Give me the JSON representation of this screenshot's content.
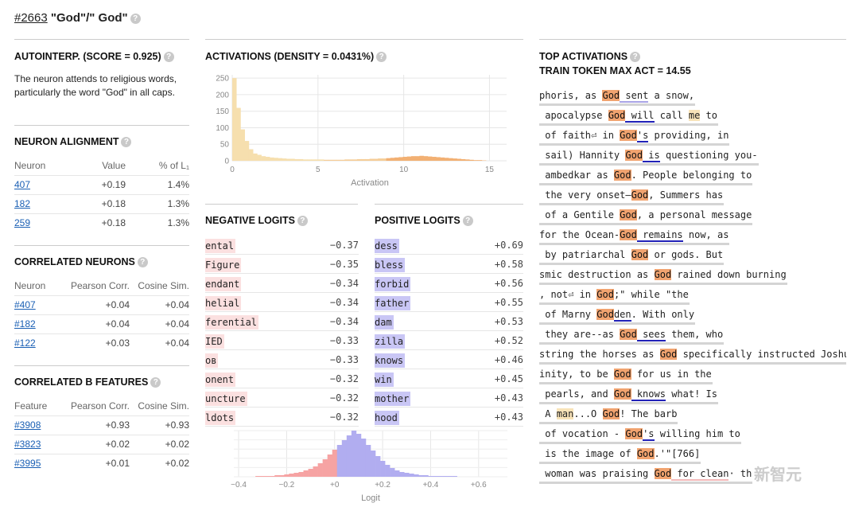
{
  "header": {
    "id_link": "#2663",
    "title": " \"God\"/\" God\""
  },
  "autointerp": {
    "title": "AUTOINTERP. (SCORE = 0.925)",
    "text": "The neuron attends to religious words, particularly the word \"God\" in all caps."
  },
  "alignment": {
    "title": "NEURON ALIGNMENT",
    "headers": [
      "Neuron",
      "Value",
      "% of L₁"
    ],
    "rows": [
      [
        "407",
        "+0.19",
        "1.4%"
      ],
      [
        "182",
        "+0.18",
        "1.3%"
      ],
      [
        "259",
        "+0.18",
        "1.3%"
      ]
    ]
  },
  "correlated_neurons": {
    "title": "CORRELATED NEURONS",
    "headers": [
      "Neuron",
      "Pearson Corr.",
      "Cosine Sim."
    ],
    "rows": [
      [
        "#407",
        "+0.04",
        "+0.04"
      ],
      [
        "#182",
        "+0.04",
        "+0.04"
      ],
      [
        "#122",
        "+0.03",
        "+0.04"
      ]
    ]
  },
  "correlated_b": {
    "title": "CORRELATED B FEATURES",
    "headers": [
      "Feature",
      "Pearson Corr.",
      "Cosine Sim."
    ],
    "rows": [
      [
        "#3908",
        "+0.93",
        "+0.93"
      ],
      [
        "#3823",
        "+0.02",
        "+0.02"
      ],
      [
        "#3995",
        "+0.01",
        "+0.02"
      ]
    ]
  },
  "activations": {
    "title": "ACTIVATIONS (DENSITY = 0.0431%)"
  },
  "negative_logits": {
    "title": "NEGATIVE LOGITS",
    "rows": [
      [
        "ental",
        "−0.37"
      ],
      [
        "Figure",
        "−0.35"
      ],
      [
        "endant",
        "−0.34"
      ],
      [
        "helial",
        "−0.34"
      ],
      [
        "ferential",
        "−0.34"
      ],
      [
        "IED",
        "−0.33"
      ],
      [
        "ов",
        "−0.33"
      ],
      [
        "onent",
        "−0.32"
      ],
      [
        "uncture",
        "−0.32"
      ],
      [
        "ldots",
        "−0.32"
      ]
    ]
  },
  "positive_logits": {
    "title": "POSITIVE LOGITS",
    "rows": [
      [
        "dess",
        "+0.69"
      ],
      [
        " bless",
        "+0.58"
      ],
      [
        " forbid",
        "+0.56"
      ],
      [
        "father",
        "+0.55"
      ],
      [
        "dam",
        "+0.53"
      ],
      [
        "zilla",
        "+0.52"
      ],
      [
        " knows",
        "+0.46"
      ],
      [
        "win",
        "+0.45"
      ],
      [
        "mother",
        "+0.43"
      ],
      [
        "hood",
        "+0.43"
      ]
    ]
  },
  "top_activations": {
    "title": "TOP ACTIVATIONS",
    "subtitle": "TRAIN TOKEN MAX ACT = 14.55",
    "lines": [
      [
        [
          "phoris, as ",
          ""
        ],
        [
          "God",
          "hl"
        ],
        [
          " sent",
          "ul-l"
        ],
        [
          " a snow,",
          ""
        ]
      ],
      [
        [
          " apocalypse ",
          ""
        ],
        [
          "God",
          "hl"
        ],
        [
          " will",
          "ul-b"
        ],
        [
          " call ",
          ""
        ],
        [
          "me",
          "hl-light"
        ],
        [
          " to",
          ""
        ]
      ],
      [
        [
          " of faith⏎ in ",
          ""
        ],
        [
          "God",
          "hl"
        ],
        [
          "'s",
          "ul-b"
        ],
        [
          " providing, in",
          ""
        ]
      ],
      [
        [
          " sail) Hannity ",
          ""
        ],
        [
          "God",
          "hl"
        ],
        [
          " is",
          "ul-b"
        ],
        [
          " questioning you-",
          ""
        ]
      ],
      [
        [
          " ambedkar as ",
          ""
        ],
        [
          "God",
          "hl"
        ],
        [
          ". People belonging to",
          ""
        ]
      ],
      [
        [
          " the very onset—",
          ""
        ],
        [
          "God",
          "hl"
        ],
        [
          ", Summers has",
          ""
        ]
      ],
      [
        [
          " of a Gentile ",
          ""
        ],
        [
          "God",
          "hl"
        ],
        [
          ", a personal message",
          ""
        ]
      ],
      [
        [
          "for the Ocean-",
          ""
        ],
        [
          "God",
          "hl"
        ],
        [
          " remains",
          "ul-b"
        ],
        [
          " now, as",
          ""
        ]
      ],
      [
        [
          " by patriarchal ",
          ""
        ],
        [
          "God",
          "hl"
        ],
        [
          " or gods. But",
          ""
        ]
      ],
      [
        [
          "smic destruction as ",
          ""
        ],
        [
          "God",
          "hl"
        ],
        [
          " rained down burning",
          ""
        ]
      ],
      [
        [
          ", not⏎ in ",
          ""
        ],
        [
          "God",
          "hl"
        ],
        [
          ";\" while \"the",
          ""
        ]
      ],
      [
        [
          " of Marny ",
          ""
        ],
        [
          "God",
          "hl"
        ],
        [
          "den",
          "ul-b"
        ],
        [
          ". With only",
          ""
        ]
      ],
      [
        [
          " they are--as ",
          ""
        ],
        [
          "God",
          "hl"
        ],
        [
          " sees",
          "ul-b"
        ],
        [
          " them, who",
          ""
        ]
      ],
      [
        [
          "string the horses as ",
          ""
        ],
        [
          "God",
          "hl"
        ],
        [
          " specifically instructed Joshua",
          ""
        ]
      ],
      [
        [
          "inity, to be ",
          ""
        ],
        [
          "God",
          "hl"
        ],
        [
          " for us in the",
          ""
        ]
      ],
      [
        [
          " pearls, and ",
          ""
        ],
        [
          "God",
          "hl"
        ],
        [
          " knows",
          "ul-b"
        ],
        [
          " what! Is",
          ""
        ]
      ],
      [
        [
          " A ",
          ""
        ],
        [
          "man",
          "hl-light"
        ],
        [
          "...O ",
          ""
        ],
        [
          "God",
          "hl"
        ],
        [
          "! The barb",
          ""
        ]
      ],
      [
        [
          " of vocation - ",
          ""
        ],
        [
          "God",
          "hl"
        ],
        [
          "'s",
          "ul-b"
        ],
        [
          " willing him to",
          ""
        ]
      ],
      [
        [
          " is the image of ",
          ""
        ],
        [
          "God",
          "hl"
        ],
        [
          ".'\"[766]",
          ""
        ]
      ],
      [
        [
          " woman was praising ",
          ""
        ],
        [
          "God",
          "hl"
        ],
        [
          " for clean",
          "ul-r"
        ],
        [
          "· th",
          ""
        ]
      ]
    ]
  },
  "watermark": "新智元",
  "act_hist": {
    "xlabel": "Activation",
    "yticks": [
      "0",
      "50",
      "100",
      "150",
      "200",
      "250"
    ],
    "xticks": [
      "0",
      "5",
      "10",
      "15"
    ]
  },
  "logit_hist": {
    "xlabel": "Logit",
    "xticks": [
      "−0.4",
      "−0.2",
      "+0",
      "+0.2",
      "+0.4",
      "+0.6"
    ]
  },
  "colors": {
    "accent_orange": "#f1a36f",
    "neg": "#f6b3b3",
    "pos": "#b9b5f2"
  }
}
